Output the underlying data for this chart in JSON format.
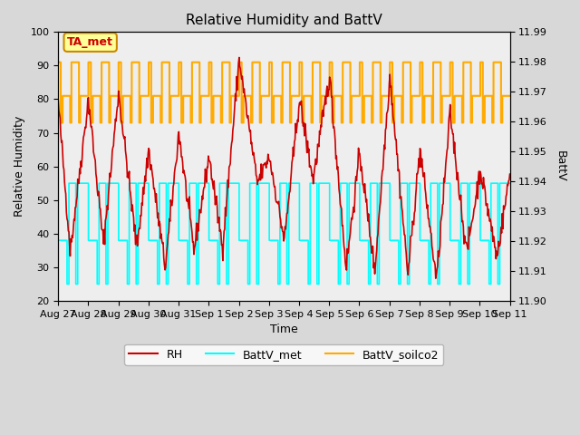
{
  "title": "Relative Humidity and BattV",
  "xlabel": "Time",
  "ylabel_left": "Relative Humidity",
  "ylabel_right": "BattV",
  "ylim_left": [
    20,
    100
  ],
  "ylim_right": [
    11.9,
    11.99
  ],
  "fig_facecolor": "#d8d8d8",
  "plot_facecolor": "#eeeeee",
  "annotation_text": "TA_met",
  "annotation_bg": "#ffff99",
  "annotation_border": "#cc8800",
  "annotation_text_color": "#cc0000",
  "rh_color": "#cc0000",
  "battv_met_color": "#00ffff",
  "battv_soilco2_color": "#ffaa00",
  "xtick_labels": [
    "Aug 27",
    "Aug 28",
    "Aug 29",
    "Aug 30",
    "Aug 31",
    "Sep 1",
    "Sep 2",
    "Sep 3",
    "Sep 4",
    "Sep 5",
    "Sep 6",
    "Sep 7",
    "Sep 8",
    "Sep 9",
    "Sep 10",
    "Sep 11"
  ],
  "num_days": 15,
  "yticks_right": [
    11.9,
    11.91,
    11.92,
    11.93,
    11.94,
    11.95,
    11.96,
    11.97,
    11.98,
    11.99
  ]
}
